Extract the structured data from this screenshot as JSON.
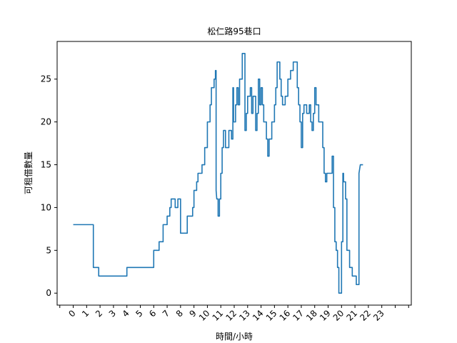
{
  "chart_data": {
    "type": "line",
    "title": "松仁路95巷口",
    "xlabel": "時間/小時",
    "ylabel": "可租借數量",
    "xlim": [
      -1.2,
      25.2
    ],
    "ylim": [
      -1.4,
      29.4
    ],
    "x_ticks": [
      -1,
      0,
      1,
      2,
      3,
      4,
      5,
      6,
      7,
      8,
      9,
      10,
      11,
      12,
      13,
      14,
      15,
      16,
      17,
      18,
      19,
      20,
      21,
      22,
      23,
      24,
      25
    ],
    "x_tick_labels": [
      "",
      "0",
      "1",
      "2",
      "3",
      "4",
      "5",
      "6",
      "7",
      "8",
      "9",
      "10",
      "11",
      "12",
      "13",
      "14",
      "15",
      "16",
      "17",
      "18",
      "19",
      "20",
      "21",
      "22",
      "23",
      "",
      ""
    ],
    "y_ticks": [
      0,
      5,
      10,
      15,
      20,
      25
    ],
    "y_tick_labels": [
      "0",
      "5",
      "10",
      "15",
      "20",
      "25"
    ],
    "grid": false,
    "legend": "none",
    "line_color": "#1f77b4",
    "series": [
      {
        "values": [
          [
            0.0,
            8
          ],
          [
            1.5,
            8
          ],
          [
            1.5,
            3
          ],
          [
            1.9,
            3
          ],
          [
            1.9,
            2
          ],
          [
            3.0,
            2
          ],
          [
            4.0,
            2
          ],
          [
            4.0,
            3
          ],
          [
            5.0,
            3
          ],
          [
            6.0,
            3
          ],
          [
            6.0,
            5
          ],
          [
            6.4,
            5
          ],
          [
            6.4,
            6
          ],
          [
            6.7,
            6
          ],
          [
            6.7,
            8
          ],
          [
            7.0,
            8
          ],
          [
            7.0,
            9
          ],
          [
            7.2,
            9
          ],
          [
            7.2,
            10
          ],
          [
            7.3,
            10
          ],
          [
            7.3,
            11
          ],
          [
            7.6,
            11
          ],
          [
            7.6,
            10
          ],
          [
            7.8,
            10
          ],
          [
            7.8,
            11
          ],
          [
            8.0,
            11
          ],
          [
            8.0,
            7
          ],
          [
            8.5,
            7
          ],
          [
            8.5,
            9
          ],
          [
            8.9,
            9
          ],
          [
            8.9,
            10
          ],
          [
            9.0,
            10
          ],
          [
            9.0,
            12
          ],
          [
            9.2,
            12
          ],
          [
            9.2,
            13
          ],
          [
            9.3,
            13
          ],
          [
            9.3,
            14
          ],
          [
            9.6,
            14
          ],
          [
            9.6,
            15
          ],
          [
            9.8,
            15
          ],
          [
            9.8,
            17
          ],
          [
            10.0,
            17
          ],
          [
            10.0,
            20
          ],
          [
            10.2,
            20
          ],
          [
            10.2,
            22
          ],
          [
            10.3,
            22
          ],
          [
            10.3,
            24
          ],
          [
            10.5,
            24
          ],
          [
            10.5,
            25
          ],
          [
            10.6,
            25
          ],
          [
            10.6,
            26
          ],
          [
            10.65,
            26
          ],
          [
            10.65,
            12
          ],
          [
            10.7,
            11
          ],
          [
            10.8,
            11
          ],
          [
            10.8,
            9
          ],
          [
            10.9,
            9
          ],
          [
            10.9,
            11
          ],
          [
            11.0,
            11
          ],
          [
            11.0,
            14
          ],
          [
            11.1,
            14
          ],
          [
            11.1,
            17
          ],
          [
            11.2,
            17
          ],
          [
            11.2,
            19
          ],
          [
            11.35,
            19
          ],
          [
            11.35,
            17
          ],
          [
            11.6,
            17
          ],
          [
            11.6,
            19
          ],
          [
            11.8,
            19
          ],
          [
            11.8,
            18
          ],
          [
            11.9,
            18
          ],
          [
            11.9,
            24
          ],
          [
            11.95,
            24
          ],
          [
            11.95,
            20
          ],
          [
            12.1,
            20
          ],
          [
            12.1,
            22
          ],
          [
            12.2,
            22
          ],
          [
            12.2,
            24
          ],
          [
            12.3,
            24
          ],
          [
            12.3,
            22
          ],
          [
            12.4,
            22
          ],
          [
            12.4,
            25
          ],
          [
            12.6,
            25
          ],
          [
            12.6,
            28
          ],
          [
            12.8,
            28
          ],
          [
            12.8,
            19
          ],
          [
            12.9,
            19
          ],
          [
            12.9,
            21
          ],
          [
            13.0,
            21
          ],
          [
            13.0,
            23
          ],
          [
            13.2,
            23
          ],
          [
            13.2,
            24
          ],
          [
            13.3,
            24
          ],
          [
            13.3,
            21
          ],
          [
            13.4,
            21
          ],
          [
            13.4,
            23
          ],
          [
            13.6,
            23
          ],
          [
            13.6,
            19
          ],
          [
            13.7,
            19
          ],
          [
            13.7,
            21
          ],
          [
            13.8,
            21
          ],
          [
            13.8,
            25
          ],
          [
            13.9,
            25
          ],
          [
            13.9,
            22
          ],
          [
            14.0,
            22
          ],
          [
            14.0,
            24
          ],
          [
            14.1,
            24
          ],
          [
            14.1,
            22
          ],
          [
            14.2,
            22
          ],
          [
            14.2,
            20
          ],
          [
            14.4,
            20
          ],
          [
            14.4,
            18
          ],
          [
            14.5,
            18
          ],
          [
            14.5,
            16
          ],
          [
            14.6,
            16
          ],
          [
            14.6,
            18
          ],
          [
            14.8,
            18
          ],
          [
            14.8,
            20
          ],
          [
            15.0,
            20
          ],
          [
            15.0,
            22
          ],
          [
            15.1,
            22
          ],
          [
            15.1,
            24
          ],
          [
            15.2,
            24
          ],
          [
            15.2,
            27
          ],
          [
            15.4,
            27
          ],
          [
            15.4,
            25
          ],
          [
            15.5,
            25
          ],
          [
            15.5,
            23
          ],
          [
            15.6,
            23
          ],
          [
            15.6,
            22
          ],
          [
            15.8,
            22
          ],
          [
            15.8,
            23
          ],
          [
            16.0,
            23
          ],
          [
            16.0,
            25
          ],
          [
            16.2,
            25
          ],
          [
            16.2,
            26
          ],
          [
            16.4,
            26
          ],
          [
            16.4,
            27
          ],
          [
            16.7,
            27
          ],
          [
            16.7,
            24
          ],
          [
            16.8,
            24
          ],
          [
            16.8,
            22
          ],
          [
            16.9,
            22
          ],
          [
            16.9,
            20
          ],
          [
            17.0,
            20
          ],
          [
            17.0,
            17
          ],
          [
            17.1,
            17
          ],
          [
            17.1,
            21
          ],
          [
            17.2,
            21
          ],
          [
            17.2,
            22
          ],
          [
            17.4,
            22
          ],
          [
            17.4,
            21
          ],
          [
            17.6,
            21
          ],
          [
            17.6,
            22
          ],
          [
            17.7,
            22
          ],
          [
            17.7,
            20
          ],
          [
            17.8,
            20
          ],
          [
            17.8,
            19
          ],
          [
            17.9,
            19
          ],
          [
            17.9,
            21
          ],
          [
            18.0,
            21
          ],
          [
            18.0,
            24
          ],
          [
            18.1,
            24
          ],
          [
            18.1,
            22
          ],
          [
            18.3,
            22
          ],
          [
            18.3,
            20
          ],
          [
            18.6,
            20
          ],
          [
            18.6,
            17
          ],
          [
            18.7,
            17
          ],
          [
            18.7,
            14
          ],
          [
            18.8,
            14
          ],
          [
            18.8,
            13
          ],
          [
            18.9,
            13
          ],
          [
            18.9,
            14
          ],
          [
            19.3,
            14
          ],
          [
            19.3,
            16
          ],
          [
            19.4,
            16
          ],
          [
            19.4,
            10
          ],
          [
            19.5,
            10
          ],
          [
            19.5,
            6
          ],
          [
            19.6,
            6
          ],
          [
            19.6,
            5
          ],
          [
            19.7,
            5
          ],
          [
            19.7,
            3
          ],
          [
            19.8,
            3
          ],
          [
            19.8,
            0
          ],
          [
            20.0,
            0
          ],
          [
            20.0,
            6
          ],
          [
            20.1,
            6
          ],
          [
            20.1,
            14
          ],
          [
            20.15,
            14
          ],
          [
            20.15,
            13
          ],
          [
            20.3,
            13
          ],
          [
            20.3,
            11
          ],
          [
            20.4,
            11
          ],
          [
            20.4,
            5
          ],
          [
            20.6,
            5
          ],
          [
            20.6,
            3
          ],
          [
            20.8,
            3
          ],
          [
            20.8,
            2
          ],
          [
            21.1,
            2
          ],
          [
            21.1,
            1
          ],
          [
            21.3,
            1
          ],
          [
            21.3,
            14
          ],
          [
            21.4,
            15
          ],
          [
            21.6,
            15
          ]
        ]
      }
    ]
  }
}
